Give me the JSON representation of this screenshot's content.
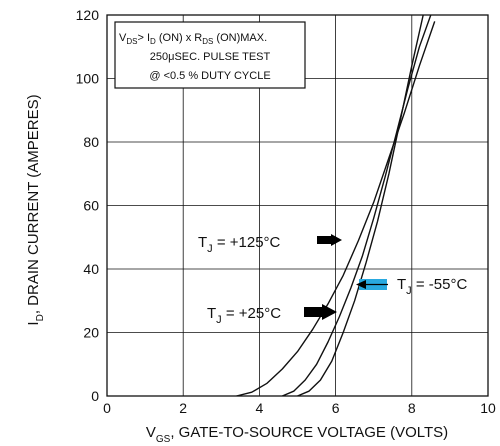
{
  "chart_data": {
    "type": "line",
    "title": "",
    "xlabel": {
      "prefix": "V",
      "sub": "GS",
      "suffix": ", GATE-TO-SOURCE VOLTAGE (VOLTS)"
    },
    "ylabel": {
      "prefix": "I",
      "sub": "D",
      "suffix": ", DRAIN CURRENT (AMPERES)"
    },
    "xlim": [
      0,
      10
    ],
    "ylim": [
      0,
      120
    ],
    "xticks": [
      0,
      2,
      4,
      6,
      8,
      10
    ],
    "yticks": [
      0,
      20,
      40,
      60,
      80,
      100,
      120
    ],
    "grid": true,
    "note_box": {
      "line1": {
        "a": "V",
        "a_sub": "DS",
        "b": "> I",
        "b_sub": "D",
        "c": " (ON) x  R",
        "c_sub": "DS",
        "d": " (ON)MAX."
      },
      "line2": "250μSEC.  PULSE TEST",
      "line3": "@  <0.5 %  DUTY CYCLE"
    },
    "series": [
      {
        "label": {
          "prefix": "T",
          "sub": "J",
          "suffix": " = +125°C"
        },
        "arrow_color": "#000000",
        "x": [
          3.4,
          3.8,
          4.2,
          4.6,
          5.0,
          5.4,
          5.8,
          6.2,
          6.6,
          7.0,
          7.4,
          7.8,
          8.2,
          8.6
        ],
        "y": [
          0,
          1.2,
          4,
          8.5,
          14,
          21,
          29,
          38,
          49,
          61,
          75,
          89,
          104,
          118
        ]
      },
      {
        "label": {
          "prefix": "T",
          "sub": "J",
          "suffix": " = +25°C"
        },
        "arrow_color": "#000000",
        "x": [
          4.6,
          4.9,
          5.2,
          5.5,
          5.8,
          6.1,
          6.4,
          6.7,
          7.0,
          7.3,
          7.6,
          7.9,
          8.2,
          8.5
        ],
        "y": [
          0,
          1.5,
          5,
          10,
          17,
          25,
          34,
          44,
          56,
          69,
          83,
          97,
          110,
          120
        ]
      },
      {
        "label": {
          "prefix": "T",
          "sub": "J",
          "suffix": " = -55°C"
        },
        "arrow_color": "#29a9e0",
        "x": [
          5.0,
          5.3,
          5.6,
          5.9,
          6.2,
          6.5,
          6.8,
          7.1,
          7.4,
          7.7,
          8.0,
          8.3
        ],
        "y": [
          0,
          1.5,
          5,
          11,
          20,
          30,
          42,
          55,
          70,
          87,
          104,
          120
        ]
      }
    ]
  }
}
